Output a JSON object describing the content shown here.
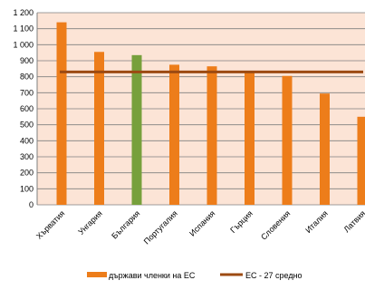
{
  "chart_data": {
    "type": "bar",
    "title": "",
    "xlabel": "",
    "ylabel": "",
    "categories": [
      "Хърватия",
      "Унгария",
      "България",
      "Португалия",
      "Испания",
      "Гърция",
      "Словения",
      "Италия",
      "Латвия"
    ],
    "series": [
      {
        "name": "държави членки на ЕС",
        "values": [
          1140,
          955,
          935,
          875,
          865,
          830,
          805,
          695,
          550
        ],
        "color": "#ED7D1A",
        "highlight_color": "#77A03C",
        "highlight_index": 2
      }
    ],
    "reference_line": {
      "name": "ЕС - 27 средно",
      "value": 830,
      "color": "#9C4A12"
    },
    "ylim": [
      0,
      1200
    ],
    "yticks": [
      0,
      100,
      200,
      300,
      400,
      500,
      600,
      700,
      800,
      900,
      1000,
      1100,
      1200
    ],
    "ytick_labels": [
      "0",
      "100",
      "200",
      "300",
      "400",
      "500",
      "600",
      "700",
      "800",
      "900",
      "1 000",
      "1 100",
      "1 200"
    ],
    "grid": true,
    "legend_position": "bottom",
    "plot_background": "#FCE4D6"
  }
}
